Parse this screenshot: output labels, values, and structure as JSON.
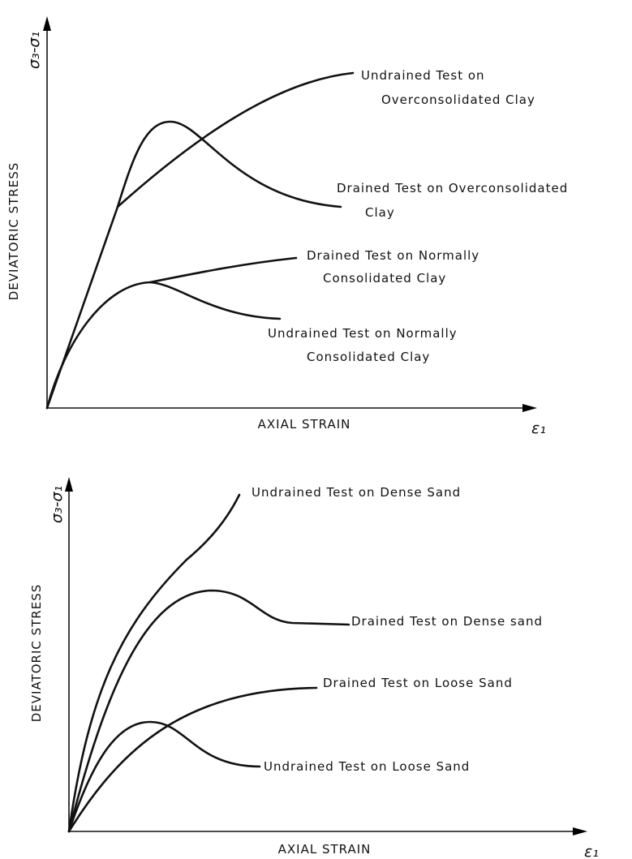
{
  "panels": [
    {
      "y_symbol": "σ₃-σ₁",
      "y_label": "DEVIATORIC STRESS",
      "x_label": "AXIAL STRAIN",
      "x_symbol": "ε₁",
      "curves": [
        {
          "label": [
            "Undrained Test on",
            "Overconsolidated Clay"
          ]
        },
        {
          "label": [
            "Drained Test on Overconsolidated",
            "Clay"
          ]
        },
        {
          "label": [
            "Drained Test on Normally",
            "Consolidated Clay"
          ]
        },
        {
          "label": [
            "Undrained Test on Normally",
            "Consolidated Clay"
          ]
        }
      ]
    },
    {
      "y_symbol": "σ₃-σ₁",
      "y_label": "DEVIATORIC STRESS",
      "x_label": "AXIAL STRAIN",
      "x_symbol": "ε₁",
      "curves": [
        {
          "label": [
            "Undrained Test on Dense Sand"
          ]
        },
        {
          "label": [
            "Drained Test on Dense sand"
          ]
        },
        {
          "label": [
            "Drained Test on Loose Sand"
          ]
        },
        {
          "label": [
            "Undrained Test on Loose Sand"
          ]
        }
      ]
    }
  ]
}
